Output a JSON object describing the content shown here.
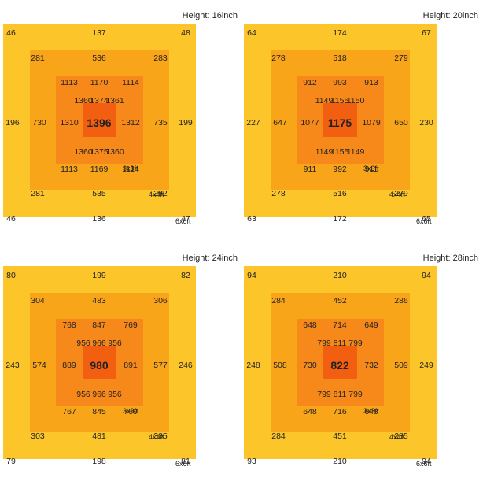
{
  "colors": {
    "zone_6x6": "#fcc52a",
    "zone_4x4": "#f9a51a",
    "zone_3x3": "#f7891a",
    "zone_center": "#f25f10"
  },
  "size_labels": {
    "z6": "6x6ft",
    "z4": "4x4ft",
    "z3": "3x3ft"
  },
  "panels": [
    {
      "height": "Height: 16inch",
      "outer": [
        "46",
        "137",
        "48",
        "196",
        "199",
        "46",
        "136",
        "47"
      ],
      "mid": [
        "281",
        "536",
        "283",
        "730",
        "735",
        "281",
        "535",
        "282"
      ],
      "inner": [
        "1113",
        "1170",
        "1114",
        "1310",
        "1312",
        "1113",
        "1169",
        "1114"
      ],
      "core": [
        "1360",
        "1374",
        "1361",
        "1360",
        "1375",
        "1360"
      ],
      "center": "1396"
    },
    {
      "height": "Height: 20inch",
      "outer": [
        "64",
        "174",
        "67",
        "227",
        "230",
        "63",
        "172",
        "65"
      ],
      "mid": [
        "278",
        "518",
        "279",
        "647",
        "650",
        "278",
        "516",
        "279"
      ],
      "inner": [
        "912",
        "993",
        "913",
        "1077",
        "1079",
        "911",
        "992",
        "911"
      ],
      "core": [
        "1149",
        "1155",
        "1150",
        "1149",
        "1155",
        "1149"
      ],
      "center": "1175"
    },
    {
      "height": "Height: 24inch",
      "outer": [
        "80",
        "199",
        "82",
        "243",
        "246",
        "79",
        "198",
        "81"
      ],
      "mid": [
        "304",
        "483",
        "306",
        "574",
        "577",
        "303",
        "481",
        "305"
      ],
      "inner": [
        "768",
        "847",
        "769",
        "889",
        "891",
        "767",
        "845",
        "769"
      ],
      "core": [
        "956",
        "966",
        "956",
        "956",
        "966",
        "956"
      ],
      "center": "980"
    },
    {
      "height": "Height: 28inch",
      "outer": [
        "94",
        "210",
        "94",
        "248",
        "249",
        "93",
        "210",
        "94"
      ],
      "mid": [
        "284",
        "452",
        "286",
        "508",
        "509",
        "284",
        "451",
        "285"
      ],
      "inner": [
        "648",
        "714",
        "649",
        "730",
        "732",
        "648",
        "716",
        "648"
      ],
      "core": [
        "799",
        "811",
        "799",
        "799",
        "811",
        "799"
      ],
      "center": "822"
    }
  ]
}
